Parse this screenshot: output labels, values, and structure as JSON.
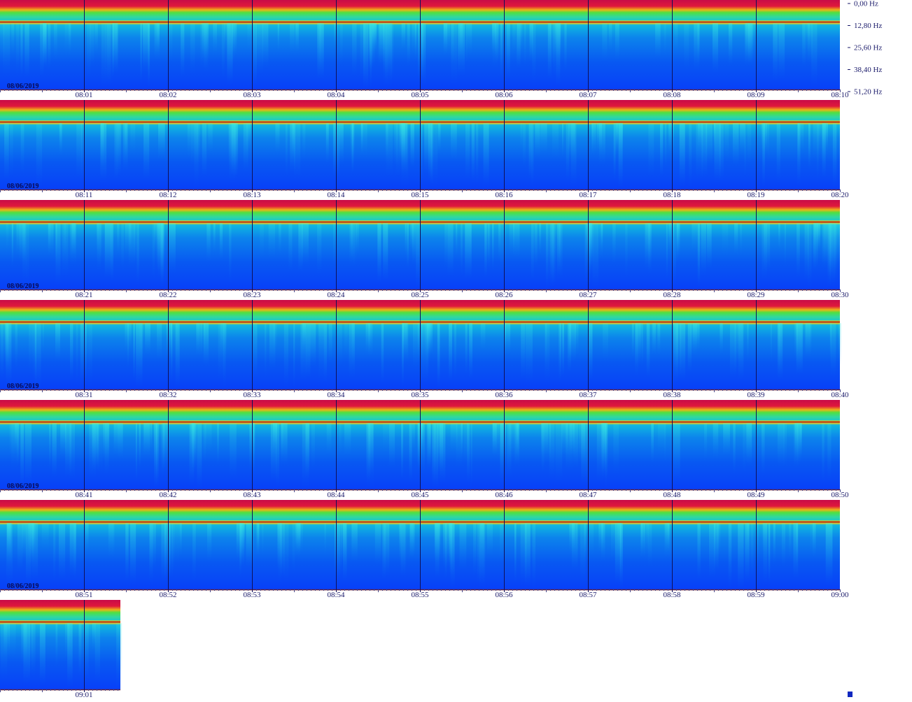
{
  "frequency_axis": {
    "labels": [
      "0,00 Hz",
      "12,80 Hz",
      "25,60 Hz",
      "38,40 Hz",
      "51,20 Hz"
    ]
  },
  "rows": [
    {
      "date": "08/06/2019",
      "times": [
        "08:01",
        "08:02",
        "08:03",
        "08:04",
        "08:05",
        "08:06",
        "08:07",
        "08:08",
        "08:09",
        "08:10"
      ]
    },
    {
      "date": "08/06/2019",
      "times": [
        "08:11",
        "08:12",
        "08:13",
        "08:14",
        "08:15",
        "08:16",
        "08:17",
        "08:18",
        "08:19",
        "08:20"
      ]
    },
    {
      "date": "08/06/2019",
      "times": [
        "08:21",
        "08:22",
        "08:23",
        "08:24",
        "08:25",
        "08:26",
        "08:27",
        "08:28",
        "08:29",
        "08:30"
      ]
    },
    {
      "date": "08/06/2019",
      "times": [
        "08:31",
        "08:32",
        "08:33",
        "08:34",
        "08:35",
        "08:36",
        "08:37",
        "08:38",
        "08:39",
        "08:40"
      ]
    },
    {
      "date": "08/06/2019",
      "times": [
        "08:41",
        "08:42",
        "08:43",
        "08:44",
        "08:45",
        "08:46",
        "08:47",
        "08:48",
        "08:49",
        "08:50"
      ]
    },
    {
      "date": "08/06/2019",
      "times": [
        "08:51",
        "08:52",
        "08:53",
        "08:54",
        "08:55",
        "08:56",
        "08:57",
        "08:58",
        "08:59",
        "09:00"
      ]
    },
    {
      "times": [
        "09:01"
      ]
    }
  ]
}
